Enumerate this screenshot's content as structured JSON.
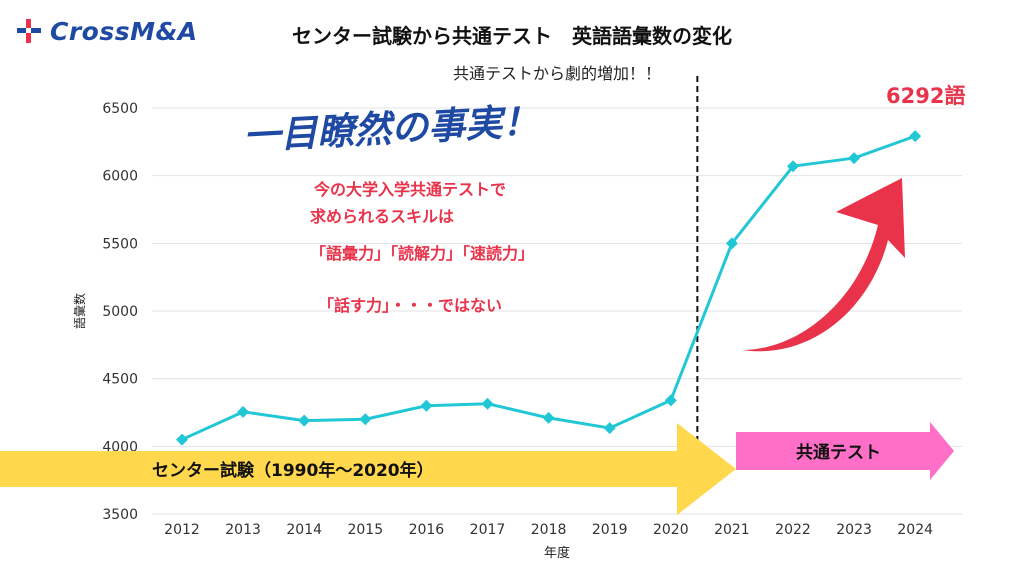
{
  "logo": {
    "text": "CrossM&A"
  },
  "page_title": "センター試験から共通テスト　英語語彙数の変化",
  "colors": {
    "line": "#22c7d6",
    "center_arrow": "#ffd84d",
    "kyotsu_arrow": "#ff6ec7",
    "big_arrow": "#e8334a",
    "logo_blue": "#1f4aa3",
    "logo_red": "#e8334a",
    "handwriting": "#1f4aa3",
    "note": "#e8334a"
  },
  "chart_data": {
    "type": "line",
    "title": "共通テストから劇的増加！！",
    "xlabel": "年度",
    "ylabel": "語彙数",
    "categories": [
      "2012",
      "2013",
      "2014",
      "2015",
      "2016",
      "2017",
      "2018",
      "2019",
      "2020",
      "2021",
      "2022",
      "2023",
      "2024"
    ],
    "series": [
      {
        "values": [
          4050,
          4255,
          4190,
          4200,
          4300,
          4315,
          4210,
          4135,
          4340,
          5500,
          6070,
          6130,
          6292
        ]
      }
    ],
    "ylim": [
      3500,
      6500
    ],
    "yticks": [
      3500,
      4000,
      4500,
      5000,
      5500,
      6000,
      6500
    ],
    "grid": true,
    "divider_between": [
      "2020",
      "2021"
    ],
    "annotations": {
      "peak_label": "6292語",
      "headline": "一目瞭然の事実！",
      "note_lines": [
        "今の大学入学共通テストで",
        "求められるスキルは",
        "「語彙力」「読解力」「速読力」",
        "",
        "「話す力」・・・ではない"
      ],
      "center_arrow_label": "センター試験（1990年～2020年）",
      "kyotsu_arrow_label": "共通テスト"
    }
  }
}
